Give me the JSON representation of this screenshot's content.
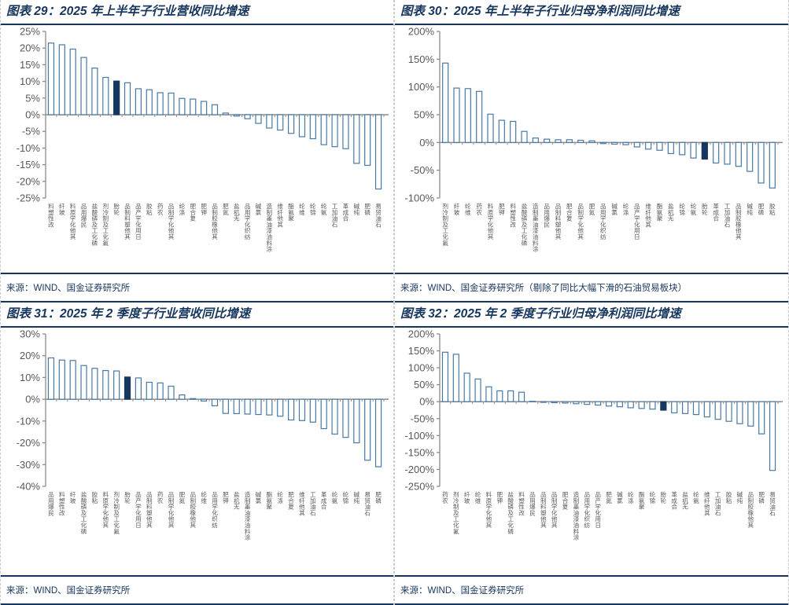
{
  "colors": {
    "accent_navy": "#17365D",
    "bar_outline": "#4879A6",
    "bar_fill": "#FFFFFF",
    "highlight_bar": "#17375E",
    "axis_gray": "#8C8C8C",
    "tick_text_gray": "#595959",
    "dashed_border": "#C9C9C9"
  },
  "panels": [
    {
      "id": "fig29",
      "title": "图表 29：2025 年上半年子行业营收同比增速",
      "source": "来源：WIND、国金证券研究所",
      "chart_data": {
        "type": "bar",
        "title": "2025 年上半年子行业营收同比增速",
        "xlabel": "",
        "ylabel": "",
        "ylim": [
          -25,
          25
        ],
        "ytick_step": 5,
        "yticks": [
          "25%",
          "20%",
          "15%",
          "10%",
          "5%",
          "0%",
          "-5%",
          "-10%",
          "-15%",
          "-20%",
          "-25%"
        ],
        "legend": "none",
        "grid": "off",
        "highlight_index": 6,
        "categories": [
          "改性塑料",
          "玻纤",
          "其他化学原料",
          "民爆用品",
          "磷化工及磷酸盐",
          "氟化工及制冷剂",
          "轮胎",
          "其他塑料制品",
          "日用化学产品",
          "粘胶",
          "农药",
          "其他化学制品",
          "涤纶",
          "复合肥",
          "钾肥",
          "其他橡胶制品",
          "氮肥",
          "无机盐",
          "纺织化学用品",
          "氯碱",
          "涂料油漆油墨制造",
          "其他纤维",
          "聚氨酯",
          "维纶",
          "锦纶",
          "氨纶",
          "石油加工",
          "合成革",
          "纯碱",
          "磷肥",
          "石油贸易"
        ],
        "values": [
          21.5,
          21.0,
          19.7,
          17.2,
          14.0,
          11.2,
          10.1,
          9.6,
          7.8,
          7.5,
          6.6,
          6.5,
          4.9,
          4.7,
          4.0,
          3.0,
          0.5,
          -0.4,
          -1.2,
          -2.6,
          -4.0,
          -4.6,
          -5.6,
          -6.6,
          -7.2,
          -9.0,
          -9.6,
          -10.2,
          -14.6,
          -15.2,
          -22.3
        ]
      }
    },
    {
      "id": "fig30",
      "title": "图表 30：2025 年上半年子行业归母净利润同比增速",
      "source": "来源：WIND、国金证券研究所（剔除了同比大幅下滑的石油贸易板块）",
      "chart_data": {
        "type": "bar",
        "title": "2025 年上半年子行业归母净利润同比增速",
        "xlabel": "",
        "ylabel": "",
        "ylim": [
          -100,
          200
        ],
        "ytick_step": 50,
        "yticks": [
          "200%",
          "150%",
          "100%",
          "50%",
          "0%",
          "-50%",
          "-100%"
        ],
        "legend": "none",
        "grid": "off",
        "highlight_index": 23,
        "categories": [
          "氟化工及制冷剂",
          "玻纤",
          "维纶",
          "农药",
          "其他化学原料",
          "钾肥",
          "改性塑料",
          "磷化工及磷酸盐",
          "涂料油漆油墨制造",
          "民爆用品",
          "其他塑料制品",
          "复合肥",
          "其他化学制品",
          "氮肥",
          "纺织化学用品",
          "氯碱",
          "涤纶",
          "日用化学产品",
          "其他纤维",
          "聚氨酯",
          "无机盐",
          "锦纶",
          "氨纶",
          "轮胎",
          "合成革",
          "石油加工",
          "其他橡胶制品",
          "纯碱",
          "磷肥",
          "粘胶"
        ],
        "values": [
          143,
          98,
          97,
          92,
          51,
          40,
          38,
          20,
          8,
          6,
          5,
          5,
          4,
          3,
          -2,
          -3,
          -4,
          -8,
          -12,
          -14,
          -20,
          -22,
          -28,
          -30,
          -37,
          -39,
          -43,
          -52,
          -73,
          -82
        ]
      }
    },
    {
      "id": "fig31",
      "title": "图表 31：2025 年 2 季度子行业营收同比增速",
      "source": "来源：WIND、国金证券研究所",
      "chart_data": {
        "type": "bar",
        "title": "2025 年 2 季度子行业营收同比增速",
        "xlabel": "",
        "ylabel": "",
        "ylim": [
          -40,
          30
        ],
        "ytick_step": 10,
        "yticks": [
          "30%",
          "20%",
          "10%",
          "0%",
          "-10%",
          "-20%",
          "-30%",
          "-40%"
        ],
        "legend": "none",
        "grid": "off",
        "highlight_index": 7,
        "categories": [
          "民爆用品",
          "改性塑料",
          "玻纤",
          "磷化工及磷酸盐",
          "粘胶",
          "其他化学原料",
          "氟化工及制冷剂",
          "轮胎",
          "日用化学产品",
          "其他塑料制品",
          "农药",
          "其他化学制品",
          "氮肥",
          "其他橡胶制品",
          "维纶",
          "纺织化学用品",
          "钾肥",
          "无机盐",
          "涂料油漆油墨制造",
          "氯碱",
          "聚氨酯",
          "涤纶",
          "复合肥",
          "其他纤维",
          "石油加工",
          "合成革",
          "氨纶",
          "锦纶",
          "纯碱",
          "石油贸易",
          "磷肥"
        ],
        "values": [
          19.0,
          18.0,
          17.8,
          15.5,
          14.2,
          13.2,
          13.0,
          10.2,
          9.8,
          7.8,
          7.5,
          6.0,
          2.0,
          0.3,
          -0.8,
          -3.0,
          -6.5,
          -6.6,
          -6.8,
          -7.0,
          -7.2,
          -7.8,
          -9.5,
          -9.8,
          -10.5,
          -13.5,
          -16.0,
          -17.5,
          -20.0,
          -28.0,
          -31.0
        ]
      }
    },
    {
      "id": "fig32",
      "title": "图表 32：2025 年 2 季度子行业归母净利润同比增速",
      "source": "来源：WIND、国金证券研究所",
      "chart_data": {
        "type": "bar",
        "title": "2025 年 2 季度子行业归母净利润同比增速",
        "xlabel": "",
        "ylabel": "",
        "ylim": [
          -250,
          200
        ],
        "ytick_step": 50,
        "yticks": [
          "200%",
          "150%",
          "100%",
          "50%",
          "0%",
          "-50%",
          "-100%",
          "-150%",
          "-200%",
          "-250%"
        ],
        "legend": "none",
        "grid": "off",
        "highlight_index": 20,
        "categories": [
          "农药",
          "氟化工及制冷剂",
          "玻纤",
          "维纶",
          "其他化学原料",
          "钾肥",
          "磷化工及磷酸盐",
          "改性塑料",
          "民爆用品",
          "其他塑料制品",
          "其他化学制品",
          "复合肥",
          "涂料油漆油墨制造",
          "纺织化学用品",
          "日用化学产品",
          "氮肥",
          "氯碱",
          "涤纶",
          "聚氨酯",
          "锦纶",
          "轮胎",
          "合成革",
          "无机盐",
          "氨纶",
          "其他纤维",
          "石油加工",
          "粘胶",
          "纯碱",
          "其他橡胶制品",
          "磷肥",
          "石油贸易"
        ],
        "values": [
          146,
          140,
          84,
          67,
          44,
          32,
          32,
          28,
          1,
          -2,
          -3,
          -4,
          -6,
          -8,
          -10,
          -13,
          -15,
          -18,
          -20,
          -22,
          -25,
          -33,
          -35,
          -38,
          -45,
          -52,
          -58,
          -65,
          -72,
          -95,
          -203
        ]
      }
    }
  ]
}
